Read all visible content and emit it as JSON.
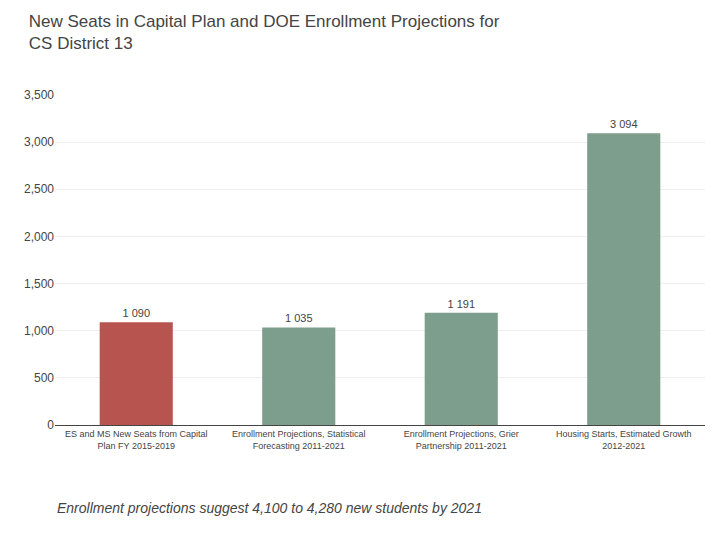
{
  "chart_data": {
    "type": "bar",
    "title": "New Seats in Capital Plan and DOE Enrollment Projections for\nCS District 13",
    "categories": [
      "ES and MS New Seats from Capital\nPlan FY 2015-2019",
      "Enrollment Projections, Statistical\nForecasting 2011-2021",
      "Enrollment Projections, Grier\nPartnership 2011-2021",
      "Housing Starts, Estimated Growth\n2012-2021"
    ],
    "values": [
      1090,
      1035,
      1191,
      3094
    ],
    "value_labels": [
      "1 090",
      "1 035",
      "1 191",
      "3 094"
    ],
    "data_labels": true,
    "colors": [
      "#B85450",
      "#7D9E8C",
      "#7D9E8C",
      "#7D9E8C"
    ],
    "ylim": [
      0,
      3500
    ],
    "yticks": [
      0,
      500,
      {
        "value": 1000,
        "label": "1,000"
      },
      {
        "value": 1500,
        "label": "1,500"
      },
      {
        "value": 2000,
        "label": "2,000"
      },
      {
        "value": 2500,
        "label": "2,500"
      },
      {
        "value": 3000,
        "label": "3,000"
      },
      {
        "value": 3500,
        "label": "3,500"
      }
    ],
    "grid": true,
    "annotations": [
      "Enrollment projections suggest 4,100 to 4,280 new students by 2021"
    ]
  }
}
